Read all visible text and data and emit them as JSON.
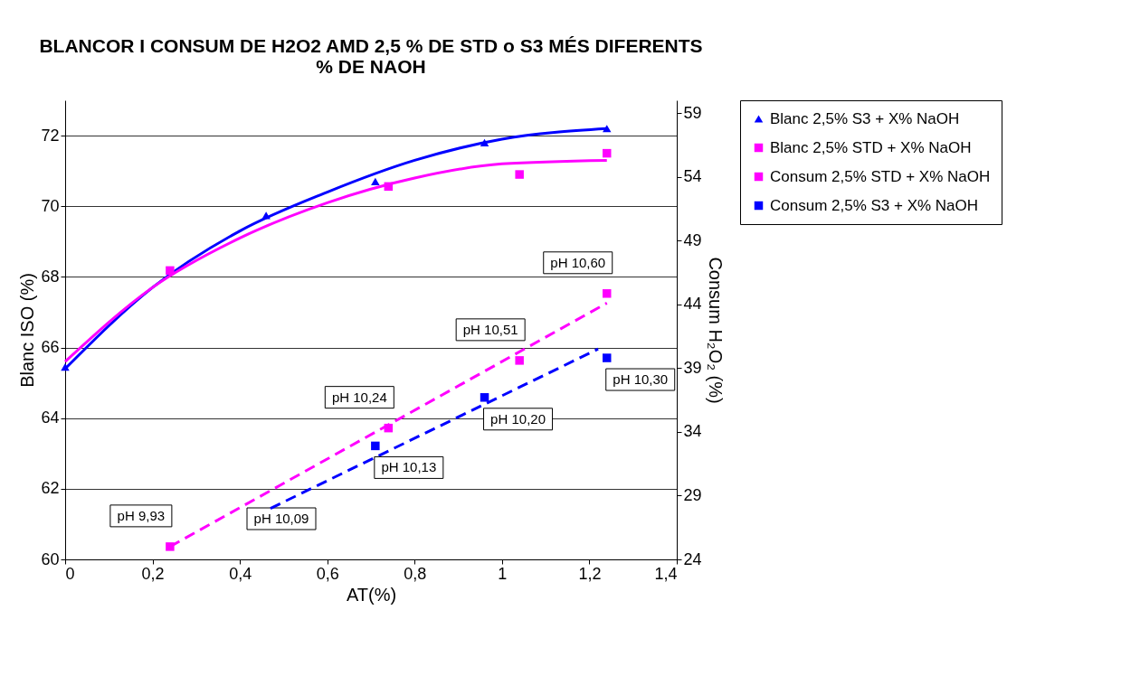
{
  "chart_data": {
    "type": "scatter",
    "title": [
      "BLANCOR I CONSUM  DE H2O2 AMD 2,5 % DE STD o S3 MÉS DIFERENTS",
      "% DE NAOH"
    ],
    "xlabel": "AT(%)",
    "ylabel": "Blanc ISO (%)",
    "y2label": "Consum H₂O₂ (%)",
    "xlim": [
      0,
      1.4
    ],
    "xticks": [
      0,
      {
        "value": 0.2,
        "label": "0,2"
      },
      {
        "value": 0.4,
        "label": "0,4"
      },
      {
        "value": 0.6,
        "label": "0,6"
      },
      {
        "value": 0.8,
        "label": "0,8"
      },
      1,
      {
        "value": 1.2,
        "label": "1,2"
      },
      {
        "value": 1.4,
        "label": "1,4"
      }
    ],
    "ylim": [
      60,
      73
    ],
    "yticks": [
      60,
      62,
      64,
      66,
      68,
      70,
      72
    ],
    "y2lim": [
      24,
      60
    ],
    "y2ticks": [
      24,
      29,
      34,
      39,
      44,
      49,
      54,
      59
    ],
    "grid": "y",
    "legend": "right",
    "series": [
      {
        "name": "Blanc 2,5% S3 + X% NaOH",
        "color": "#0000ff",
        "marker": "triangle",
        "x": [
          0,
          0.46,
          0.71,
          0.96,
          1.24
        ],
        "values": [
          65.45,
          69.74,
          70.7,
          71.8,
          72.2
        ]
      },
      {
        "name": "Blanc 2,5% STD + X% NaOH",
        "color": "#ff00ff",
        "marker": "square",
        "x": [
          0.24,
          0.74,
          1.04,
          1.24
        ],
        "values": [
          68.18,
          70.56,
          70.9,
          71.5
        ]
      },
      {
        "name": "Consum 2,5% STD + X% NaOH",
        "color": "#ff00ff",
        "marker": "square",
        "axis": "y2",
        "x": [
          0.24,
          0.74,
          1.04,
          1.24
        ],
        "values": [
          25.0,
          34.3,
          39.6,
          44.85
        ],
        "value_labels": [
          "pH 9,93",
          "pH 10,24",
          "pH 10,51",
          "pH 10,60"
        ]
      },
      {
        "name": "Consum 2,5% S3 + X% NaOH",
        "color": "#0000ff",
        "marker": "square",
        "axis": "y2",
        "x": [
          0.71,
          0.96,
          1.24
        ],
        "values": [
          32.9,
          36.7,
          39.8
        ],
        "value_labels": [
          "pH 10,13",
          "pH 10,20",
          "pH 10,30"
        ]
      },
      {
        "type": "line",
        "color": "#0000ff",
        "line_style": "solid",
        "x": [
          0,
          0.2,
          0.4,
          0.6,
          0.8,
          1.0,
          1.24
        ],
        "values": [
          65.4,
          67.7,
          69.3,
          70.4,
          71.3,
          71.9,
          72.2
        ]
      },
      {
        "type": "line",
        "color": "#ff00ff",
        "line_style": "solid",
        "x": [
          0,
          0.2,
          0.4,
          0.6,
          0.8,
          1.0,
          1.24
        ],
        "values": [
          65.6,
          67.7,
          69.1,
          70.1,
          70.8,
          71.2,
          71.3
        ]
      },
      {
        "type": "line",
        "color": "#ff00ff",
        "line_style": "dashed",
        "axis": "y2",
        "x": [
          0.24,
          1.24
        ],
        "values": [
          25.0,
          44.1
        ]
      },
      {
        "type": "line",
        "color": "#0000ff",
        "line_style": "dashed",
        "axis": "y2",
        "x": [
          0.47,
          1.22
        ],
        "values": [
          28.0,
          40.5
        ]
      }
    ],
    "annotations": [
      "pH 10,09"
    ]
  }
}
